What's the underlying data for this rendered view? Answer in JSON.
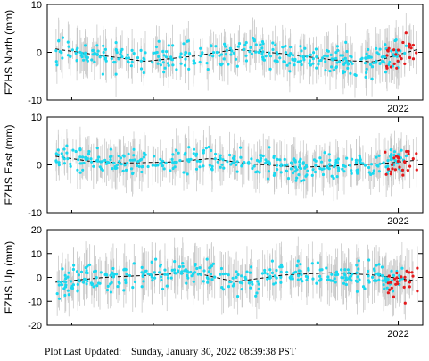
{
  "footer": {
    "label": "Plot Last Updated:",
    "value": "Sunday, January 30, 2022 08:39:38 PST"
  },
  "colors": {
    "data_points": "#1ad8ef",
    "recent_points": "#e41a1c",
    "error_bars": "#c8c8c8",
    "trend_line": "#000000"
  },
  "chart_data": [
    {
      "type": "scatter",
      "ylabel": "FZHS North (mm)",
      "ylim": [
        -10,
        10
      ],
      "yticks": [
        -10,
        0,
        10
      ],
      "x_tick_label": "2022",
      "xlim": [
        2019.85,
        2022.15
      ],
      "grid": false,
      "series": [
        {
          "style": "cyan points with gray error bars",
          "x_range": [
            2019.9,
            2022.12
          ],
          "typical_y_range": [
            -6,
            5
          ],
          "error_bar_half_width": 3.5
        },
        {
          "style": "red points (rapid solutions)",
          "x_range": [
            2021.92,
            2022.12
          ],
          "typical_y_range": [
            -4,
            6
          ]
        },
        {
          "style": "dashed black trend",
          "x": [
            2019.9,
            2020.15,
            2020.45,
            2020.75,
            2021.0,
            2021.3,
            2021.6,
            2021.85,
            2022.0,
            2022.12
          ],
          "y": [
            0.7,
            -0.5,
            -1.9,
            -0.8,
            0.6,
            -0.3,
            -1.6,
            -2.0,
            -0.5,
            0.6
          ]
        }
      ]
    },
    {
      "type": "scatter",
      "ylabel": "FZHS East (mm)",
      "ylim": [
        -10,
        10
      ],
      "yticks": [
        -10,
        0,
        10
      ],
      "x_tick_label": "2022",
      "xlim": [
        2019.85,
        2022.15
      ],
      "grid": false,
      "series": [
        {
          "style": "cyan points with gray error bars",
          "x_range": [
            2019.9,
            2022.12
          ],
          "typical_y_range": [
            -5,
            4
          ],
          "error_bar_half_width": 3.5
        },
        {
          "style": "red points (rapid solutions)",
          "x_range": [
            2021.92,
            2022.12
          ],
          "typical_y_range": [
            -1,
            5
          ]
        },
        {
          "style": "dashed black trend",
          "x": [
            2019.9,
            2020.1,
            2020.35,
            2020.6,
            2020.85,
            2021.1,
            2021.4,
            2021.7,
            2021.95,
            2022.12
          ],
          "y": [
            1.8,
            0.8,
            0.4,
            0.6,
            1.3,
            0.2,
            -0.5,
            -0.1,
            0.4,
            1.0
          ]
        }
      ]
    },
    {
      "type": "scatter",
      "ylabel": "FZHS Up (mm)",
      "ylim": [
        -20,
        20
      ],
      "yticks": [
        -20,
        -10,
        0,
        10,
        20
      ],
      "x_tick_label": "2022",
      "xlim": [
        2019.85,
        2022.15
      ],
      "grid": false,
      "series": [
        {
          "style": "cyan points with gray error bars",
          "x_range": [
            2019.9,
            2022.12
          ],
          "typical_y_range": [
            -10,
            11
          ],
          "error_bar_half_width": 8
        },
        {
          "style": "red points (rapid solutions)",
          "x_range": [
            2021.92,
            2022.12
          ],
          "typical_y_range": [
            -5,
            8
          ]
        },
        {
          "style": "dashed black trend",
          "x": [
            2019.9,
            2020.2,
            2020.5,
            2020.75,
            2021.0,
            2021.3,
            2021.6,
            2021.85,
            2022.12
          ],
          "y": [
            -2.0,
            0.0,
            1.0,
            2.0,
            -1.8,
            1.0,
            2.0,
            1.0,
            -1.5
          ]
        }
      ]
    }
  ]
}
